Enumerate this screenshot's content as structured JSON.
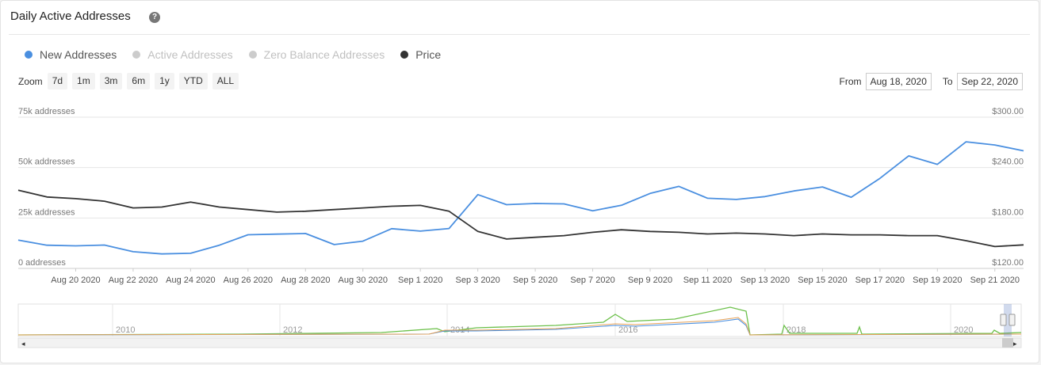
{
  "header": {
    "title": "Daily Active Addresses",
    "help_icon": "?"
  },
  "legend": [
    {
      "label": "New Addresses",
      "color": "#4a8fe0",
      "text_color": "#555555",
      "visible": true
    },
    {
      "label": "Active Addresses",
      "color": "#cccccc",
      "text_color": "#c0c0c0",
      "visible": false
    },
    {
      "label": "Zero Balance Addresses",
      "color": "#cccccc",
      "text_color": "#c0c0c0",
      "visible": false
    },
    {
      "label": "Price",
      "color": "#333333",
      "text_color": "#555555",
      "visible": true
    }
  ],
  "zoom": {
    "label": "Zoom",
    "buttons": [
      "7d",
      "1m",
      "3m",
      "6m",
      "1y",
      "YTD",
      "ALL"
    ]
  },
  "range": {
    "from_label": "From",
    "from_value": "Aug 18, 2020",
    "to_label": "To",
    "to_value": "Sep 22, 2020"
  },
  "chart_data": {
    "type": "line",
    "x_tick_labels": [
      "Aug 20 2020",
      "Aug 22 2020",
      "Aug 24 2020",
      "Aug 26 2020",
      "Aug 28 2020",
      "Aug 30 2020",
      "Sep 1 2020",
      "Sep 3 2020",
      "Sep 5 2020",
      "Sep 7 2020",
      "Sep 9 2020",
      "Sep 11 2020",
      "Sep 13 2020",
      "Sep 15 2020",
      "Sep 17 2020",
      "Sep 19 2020",
      "Sep 21 2020"
    ],
    "y_left": {
      "ylim": [
        0,
        75000
      ],
      "tick_labels": [
        "0 addresses",
        "25k addresses",
        "50k addresses",
        "75k addresses"
      ]
    },
    "y_right": {
      "ylim": [
        120,
        300
      ],
      "tick_labels": [
        "$120.00",
        "$180.00",
        "$240.00",
        "$300.00"
      ]
    },
    "grid": true,
    "series": [
      {
        "name": "New Addresses",
        "color": "#4a8fe0",
        "axis": "left",
        "values": [
          14000,
          11500,
          11200,
          11600,
          8300,
          7200,
          7500,
          11500,
          16700,
          17000,
          17300,
          11800,
          13500,
          19700,
          18500,
          19800,
          36600,
          31600,
          32200,
          32000,
          28600,
          31300,
          37200,
          40700,
          34800,
          34200,
          35600,
          38400,
          40400,
          35300,
          44700,
          55800,
          51600,
          62800,
          61200,
          58300
        ]
      },
      {
        "name": "Price",
        "color": "#333333",
        "axis": "right",
        "values": [
          213,
          205,
          203,
          200,
          192,
          193,
          199,
          193,
          190,
          187,
          188,
          190,
          192,
          194,
          195,
          188,
          164,
          155,
          157,
          159,
          163,
          166,
          164,
          163,
          161,
          162,
          161,
          159,
          161,
          160,
          160,
          159,
          159,
          153,
          146,
          148
        ]
      }
    ],
    "navigator": {
      "year_labels": [
        "2010",
        "2012",
        "2014",
        "2016",
        "2018",
        "2020"
      ]
    }
  }
}
